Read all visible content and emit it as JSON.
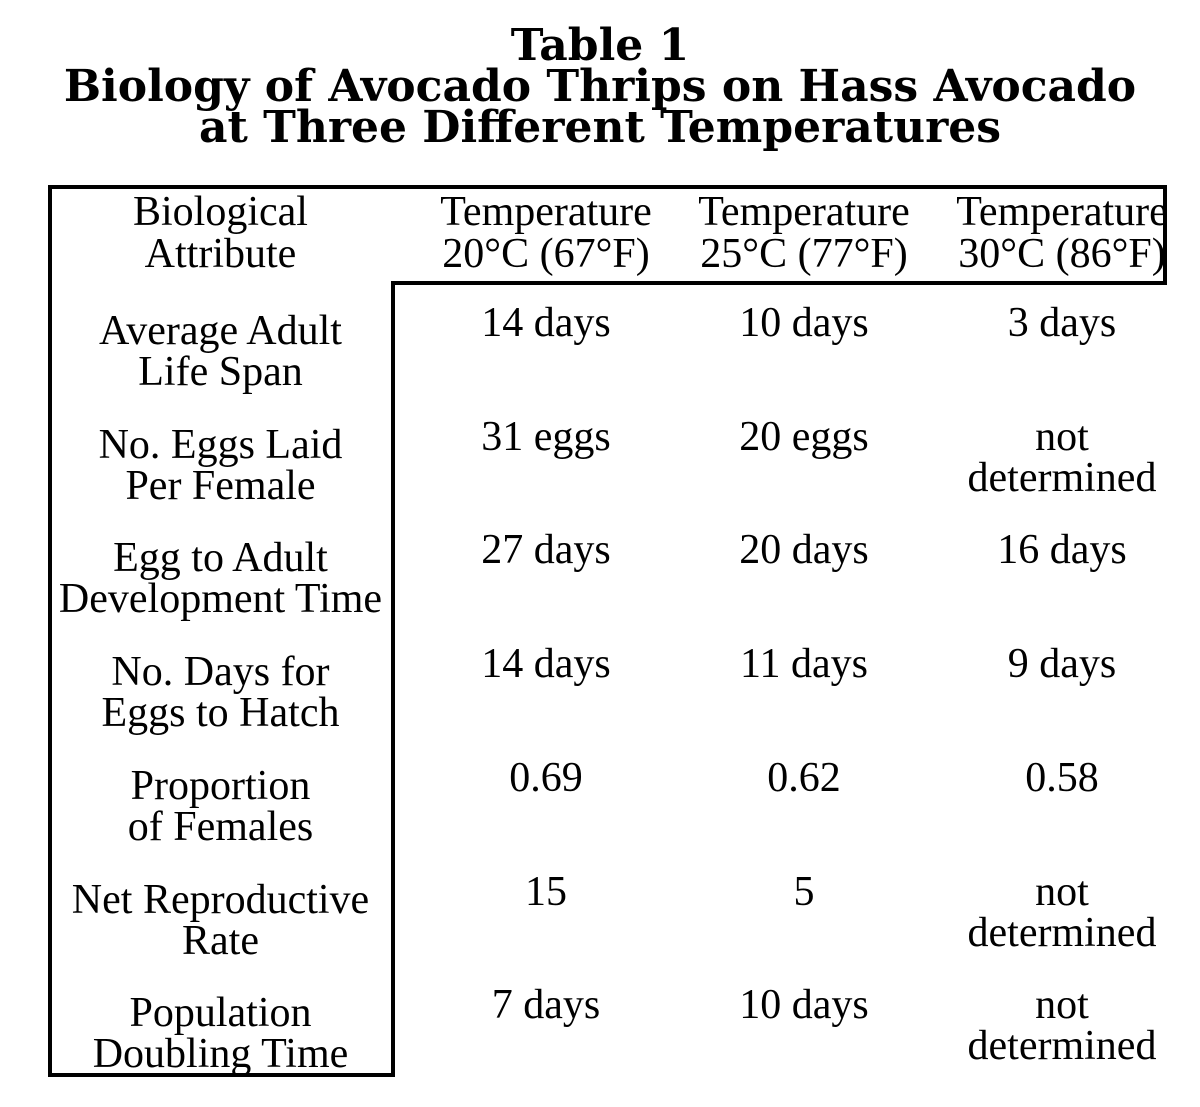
{
  "title": {
    "lines": [
      "Table 1",
      "Biology of Avocado Thrips on Hass Avocado",
      "at Three Different Temperatures"
    ]
  },
  "table": {
    "header": {
      "attribute": "Biological\nAttribute",
      "columns": [
        "Temperature\n20°C (67°F)",
        "Temperature\n25°C (77°F)",
        "Temperature\n30°C (86°F)"
      ]
    },
    "rows": [
      {
        "attribute": "Average Adult\nLife Span",
        "values": [
          "14 days",
          "10 days",
          "3 days"
        ]
      },
      {
        "attribute": "No. Eggs Laid\nPer Female",
        "values": [
          "31 eggs",
          "20 eggs",
          "not\ndetermined"
        ]
      },
      {
        "attribute": "Egg to Adult\nDevelopment Time",
        "values": [
          "27 days",
          "20 days",
          "16 days"
        ]
      },
      {
        "attribute": "No. Days for\nEggs to Hatch",
        "values": [
          "14 days",
          "11 days",
          "9 days"
        ]
      },
      {
        "attribute": "Proportion\nof Females",
        "values": [
          "0.69",
          "0.62",
          "0.58"
        ]
      },
      {
        "attribute": "Net Reproductive\nRate",
        "values": [
          "15",
          "5",
          "not\ndetermined"
        ]
      },
      {
        "attribute": "Population\nDoubling Time",
        "values": [
          "7 days",
          "10 days",
          "not\ndetermined"
        ]
      }
    ]
  },
  "chart_data": {
    "type": "table",
    "title": "Table 1 — Biology of Avocado Thrips on Hass Avocado at Three Different Temperatures",
    "columns": [
      "Biological Attribute",
      "Temperature 20°C (67°F)",
      "Temperature 25°C (77°F)",
      "Temperature 30°C (86°F)"
    ],
    "rows": [
      [
        "Average Adult Life Span",
        "14 days",
        "10 days",
        "3 days"
      ],
      [
        "No. Eggs Laid Per Female",
        "31 eggs",
        "20 eggs",
        "not determined"
      ],
      [
        "Egg to Adult Development Time",
        "27 days",
        "20 days",
        "16 days"
      ],
      [
        "No. Days for Eggs to Hatch",
        "14 days",
        "11 days",
        "9 days"
      ],
      [
        "Proportion of Females",
        "0.69",
        "0.62",
        "0.58"
      ],
      [
        "Net Reproductive Rate",
        "15",
        "5",
        "not determined"
      ],
      [
        "Population Doubling Time",
        "7 days",
        "10 days",
        "not determined"
      ]
    ]
  },
  "colors": {
    "background": "#ffffff",
    "text": "#000000",
    "border": "#000000"
  }
}
